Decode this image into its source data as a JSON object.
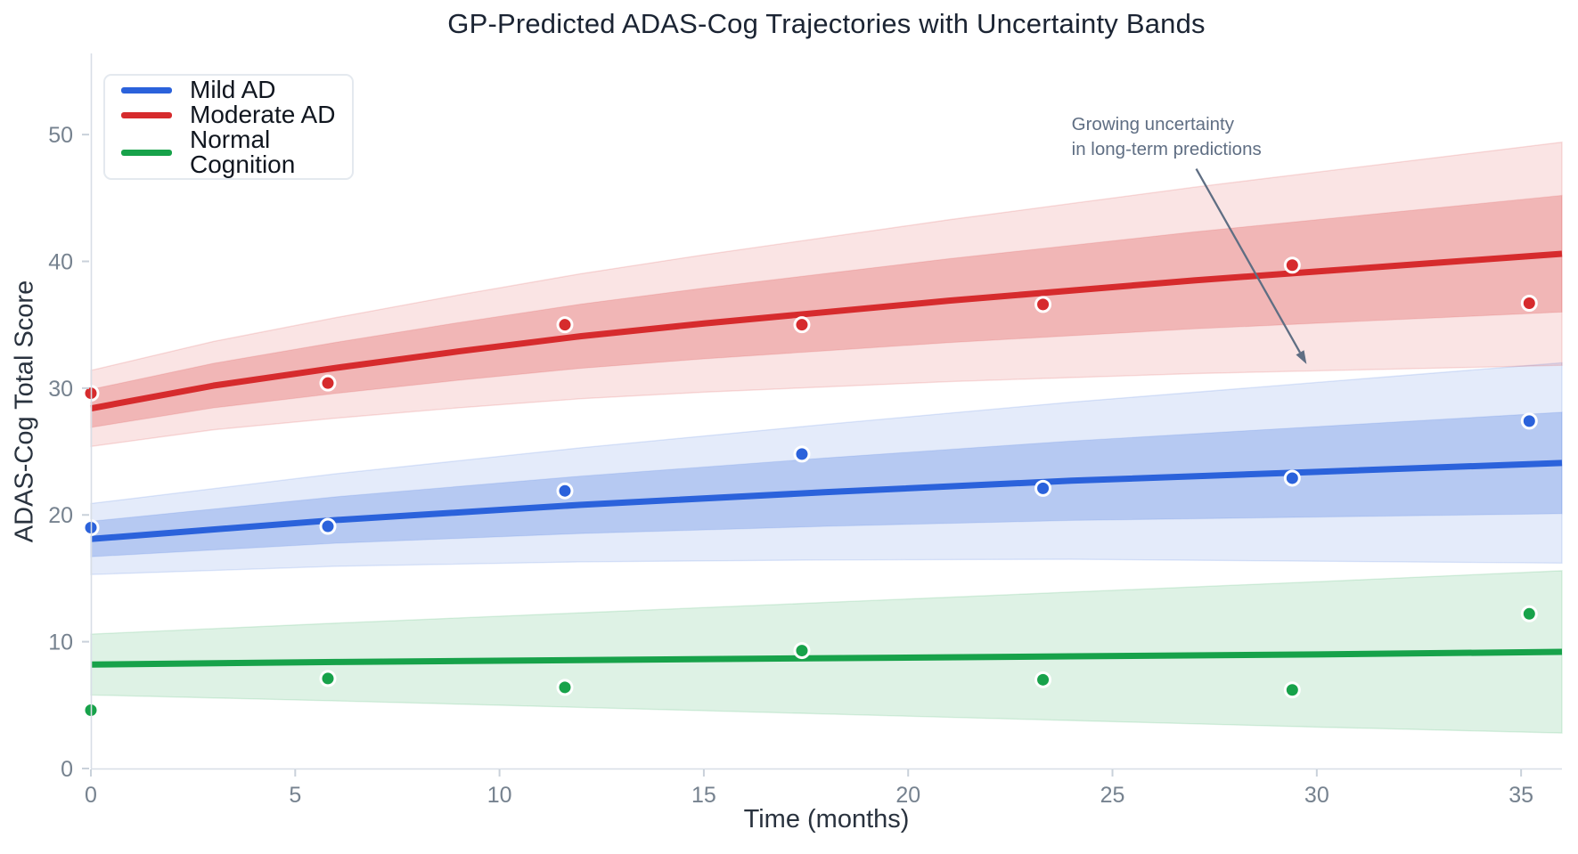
{
  "title": "GP-Predicted ADAS-Cog Trajectories with Uncertainty Bands",
  "axes": {
    "xlabel": "Time (months)",
    "ylabel": "ADAS-Cog Total Score",
    "x_ticks": [
      0,
      5,
      10,
      15,
      20,
      25,
      30,
      35
    ],
    "y_ticks": [
      0,
      10,
      20,
      30,
      40,
      50
    ],
    "xlim": [
      0,
      36
    ],
    "ylim": [
      0,
      56.4
    ],
    "tick_color": "#76828f",
    "spine_color": "#d8dee6"
  },
  "legend": {
    "items": [
      {
        "label": "Mild AD",
        "color": "#2b62db"
      },
      {
        "label": "Moderate AD",
        "color": "#d62b2d"
      },
      {
        "label": "Normal Cognition",
        "color": "#17a24a"
      }
    ]
  },
  "annotation": {
    "line1": "Growing uncertainty",
    "line2": "in long-term predictions",
    "color": "#5f6e83",
    "text_pos_months": [
      24.0,
      50.35
    ],
    "arrow_from_months": [
      27.05,
      47.3
    ],
    "arrow_to_months": [
      29.75,
      31.9
    ]
  },
  "chart_data": {
    "type": "line",
    "title": "GP-Predicted ADAS-Cog Trajectories with Uncertainty Bands",
    "xlabel": "Time (months)",
    "ylabel": "ADAS-Cog Total Score",
    "xlim": [
      0,
      36
    ],
    "ylim": [
      0,
      56.4
    ],
    "grid": false,
    "legend_position": "upper left",
    "bands": "shaded regions are GP mean ±1σ and ±2σ uncertainty, widening with time",
    "series": [
      {
        "name": "Normal Cognition",
        "color": "#17a24a",
        "scatter_x": [
          0,
          5.8,
          11.6,
          17.4,
          23.3,
          29.4,
          35.2
        ],
        "scatter_y": [
          4.6,
          7.1,
          6.4,
          9.3,
          7.0,
          6.2,
          12.2
        ],
        "mean_x": [
          0,
          6,
          12,
          18,
          24,
          30,
          36
        ],
        "mean_y": [
          8.2,
          8.4,
          8.55,
          8.7,
          8.85,
          9.0,
          9.2
        ],
        "sigma2_start_end": [
          2.4,
          6.4
        ]
      },
      {
        "name": "Mild AD",
        "color": "#2b62db",
        "scatter_x": [
          0,
          5.8,
          11.6,
          17.4,
          23.3,
          29.4,
          35.2
        ],
        "scatter_y": [
          19.0,
          19.1,
          21.9,
          24.8,
          22.1,
          22.9,
          27.4
        ],
        "mean_x": [
          0,
          6,
          12,
          18,
          24,
          30,
          36
        ],
        "mean_y": [
          18.1,
          19.6,
          20.8,
          21.8,
          22.7,
          23.4,
          24.1
        ],
        "sigma1_start_end": [
          1.4,
          4.0
        ],
        "sigma2_start_end": [
          2.8,
          7.9
        ]
      },
      {
        "name": "Moderate AD",
        "color": "#d62b2d",
        "scatter_x": [
          0,
          5.8,
          11.6,
          17.4,
          23.3,
          29.4,
          35.2
        ],
        "scatter_y": [
          29.6,
          30.4,
          35.0,
          35.0,
          36.6,
          39.7,
          36.7
        ],
        "mean_x": [
          0,
          3,
          6,
          9,
          12,
          15,
          18,
          21,
          24,
          27,
          30,
          33,
          36
        ],
        "mean_y": [
          28.4,
          30.2,
          31.6,
          32.9,
          34.1,
          35.1,
          36.0,
          36.9,
          37.7,
          38.5,
          39.2,
          39.9,
          40.6
        ],
        "sigma1_start_end": [
          1.5,
          4.6
        ],
        "sigma2_start_end": [
          3.0,
          8.8
        ]
      }
    ]
  }
}
